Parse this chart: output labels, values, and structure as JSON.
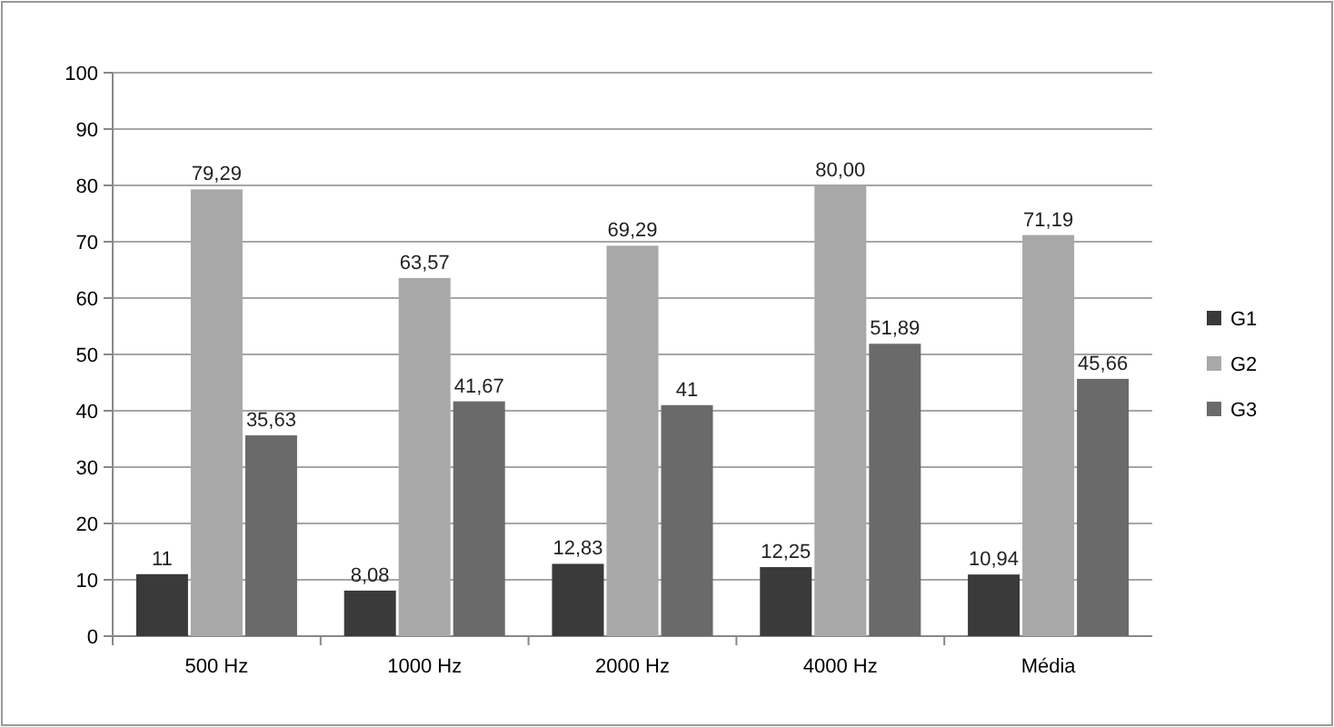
{
  "chart_data": {
    "type": "bar",
    "categories": [
      "500 Hz",
      "1000 Hz",
      "2000 Hz",
      "4000 Hz",
      "Média"
    ],
    "series": [
      {
        "name": "G1",
        "color": "#3a3a3a",
        "values": [
          11,
          8.08,
          12.83,
          12.25,
          10.94
        ],
        "value_labels": [
          "11",
          "8,08",
          "12,83",
          "12,25",
          "10,94"
        ]
      },
      {
        "name": "G2",
        "color": "#a8a8a8",
        "values": [
          79.29,
          63.57,
          69.29,
          80,
          71.19
        ],
        "value_labels": [
          "79,29",
          "63,57",
          "69,29",
          "80,00",
          "71,19"
        ]
      },
      {
        "name": "G3",
        "color": "#6a6a6a",
        "values": [
          35.63,
          41.67,
          41,
          51.89,
          45.66
        ],
        "value_labels": [
          "35,63",
          "41,67",
          "41",
          "51,89",
          "45,66"
        ]
      }
    ],
    "ylim": [
      0,
      100
    ],
    "yticks": [
      0,
      10,
      20,
      30,
      40,
      50,
      60,
      70,
      80,
      90,
      100
    ],
    "grid": "y",
    "legend": "right"
  }
}
